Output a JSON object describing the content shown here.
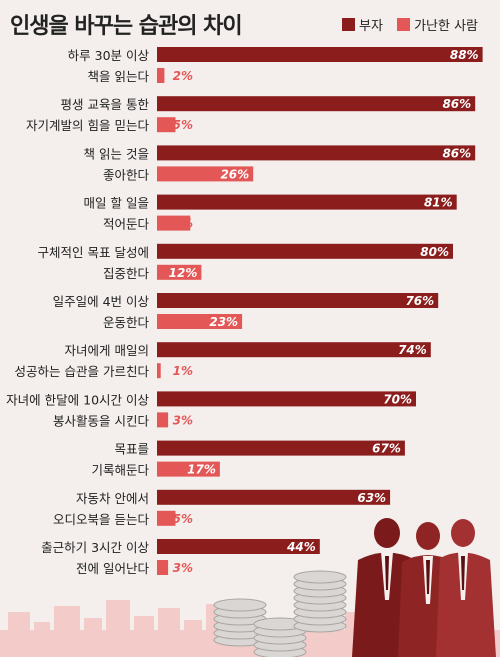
{
  "colors": {
    "rich": "#8b1d1d",
    "poor": "#e45757",
    "background": "#f4efed"
  },
  "title": "인생을 바꾸는 습관의 차이",
  "legend": [
    {
      "name": "부자",
      "color": "#8b1d1d"
    },
    {
      "name": "가난한 사람",
      "color": "#e45757"
    }
  ],
  "chart_data": {
    "type": "bar",
    "orientation": "horizontal",
    "title": "인생을 바꾸는 습관의 차이",
    "legend_position": "top-right",
    "xlim": [
      0,
      100
    ],
    "categories": [
      [
        "하루 30분 이상",
        "책을 읽는다"
      ],
      [
        "평생 교육을 통한",
        "자기계발의 힘을 믿는다"
      ],
      [
        "책 읽는 것을",
        "좋아한다"
      ],
      [
        "매일 할 일을",
        "적어둔다"
      ],
      [
        "구체적인 목표 달성에",
        "집중한다"
      ],
      [
        "일주일에 4번 이상",
        "운동한다"
      ],
      [
        "자녀에게 매일의",
        "성공하는 습관을 가르친다"
      ],
      [
        "자녀에 한달에 10시간 이상",
        "봉사활동을 시킨다"
      ],
      [
        "목표를",
        "기록해둔다"
      ],
      [
        "자동차 안에서",
        "오디오북을 듣는다"
      ],
      [
        "출근하기 3시간 이상",
        "전에 일어난다"
      ]
    ],
    "series": [
      {
        "name": "부자",
        "values": [
          88,
          86,
          86,
          81,
          80,
          76,
          74,
          70,
          67,
          63,
          44
        ],
        "labels": [
          "88%",
          "86%",
          "86%",
          "81%",
          "80%",
          "76%",
          "74%",
          "70%",
          "67%",
          "63%",
          "44%"
        ]
      },
      {
        "name": "가난한 사람",
        "values": [
          2,
          5,
          26,
          9,
          12,
          23,
          1,
          3,
          17,
          5,
          3
        ],
        "labels": [
          "2%",
          "5%",
          "26%",
          "9%",
          "12%",
          "23%",
          "1%",
          "3%",
          "17%",
          "5%",
          "3%"
        ]
      }
    ]
  }
}
